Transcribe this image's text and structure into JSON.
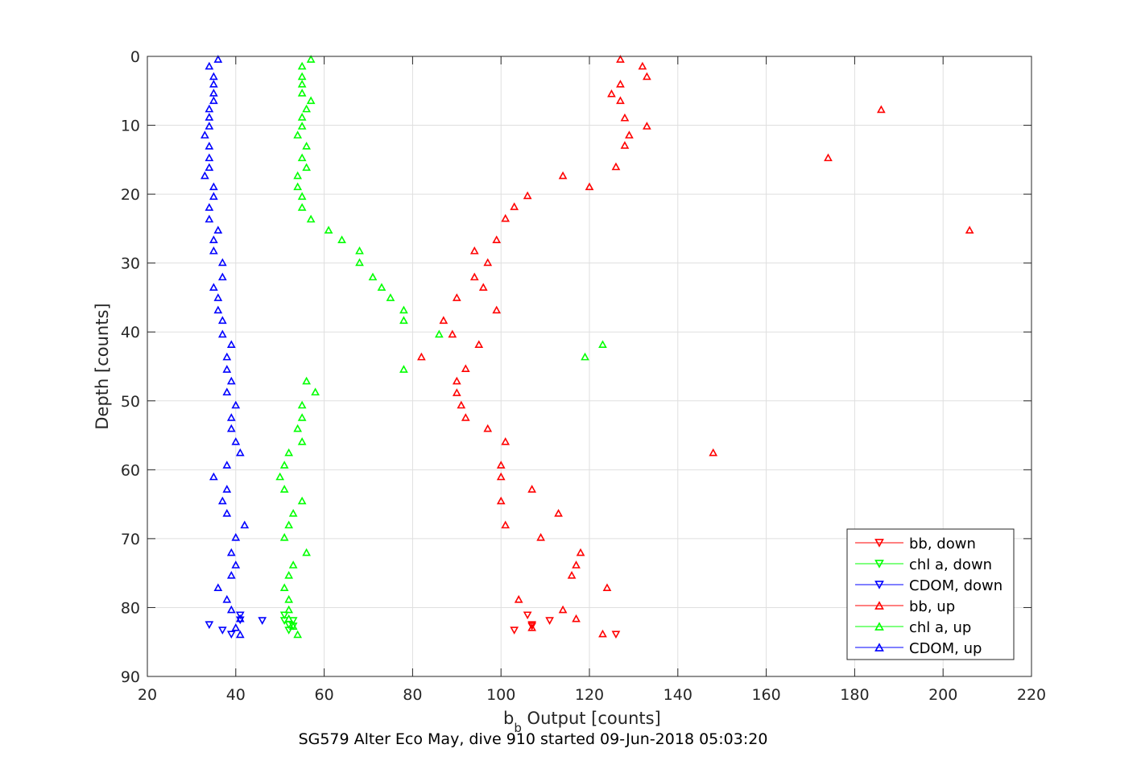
{
  "chart_data": {
    "type": "scatter",
    "title": "SG579 Alter Eco May, dive 910 started 09-Jun-2018 05:03:20",
    "xlabel_main": "b",
    "xlabel_sub": "b",
    "xlabel_rest": " Output [counts]",
    "ylabel": "Depth [counts]",
    "xlim": [
      20,
      220
    ],
    "ylim": [
      0,
      90
    ],
    "y_reversed": true,
    "grid": true,
    "legend_position": "bottom-right",
    "x_ticks": [
      20,
      40,
      60,
      80,
      100,
      120,
      140,
      160,
      180,
      200,
      220
    ],
    "y_ticks": [
      0,
      10,
      20,
      30,
      40,
      50,
      60,
      70,
      80,
      90
    ],
    "series": [
      {
        "name": "bb, down",
        "color": "#ff0000",
        "marker": "triangle-down",
        "points": [
          [
            103,
            83.3
          ],
          [
            107,
            82.7
          ],
          [
            111,
            81.9
          ],
          [
            106,
            81.1
          ],
          [
            107,
            82.5
          ],
          [
            126,
            83.9
          ]
        ]
      },
      {
        "name": "chl a, down",
        "color": "#00ff00",
        "marker": "triangle-down",
        "points": [
          [
            52,
            83.3
          ],
          [
            53,
            82.7
          ],
          [
            53,
            81.9
          ],
          [
            51,
            81.1
          ],
          [
            52,
            82.5
          ],
          [
            51,
            81.9
          ]
        ]
      },
      {
        "name": "CDOM, down",
        "color": "#0000ff",
        "marker": "triangle-down",
        "points": [
          [
            37,
            83.3
          ],
          [
            39,
            83.9
          ],
          [
            34,
            82.5
          ],
          [
            46,
            81.9
          ],
          [
            41,
            81.1
          ],
          [
            41,
            81.8
          ]
        ]
      },
      {
        "name": "bb, up",
        "color": "#ff0000",
        "marker": "triangle-up",
        "points": [
          [
            127,
            0.4
          ],
          [
            132,
            1.4
          ],
          [
            133,
            2.9
          ],
          [
            127,
            4.0
          ],
          [
            125,
            5.4
          ],
          [
            127,
            6.4
          ],
          [
            186,
            7.7
          ],
          [
            128,
            8.9
          ],
          [
            133,
            10.1
          ],
          [
            129,
            11.4
          ],
          [
            128,
            12.9
          ],
          [
            174,
            14.7
          ],
          [
            126,
            16.0
          ],
          [
            114,
            17.3
          ],
          [
            120,
            18.9
          ],
          [
            106,
            20.2
          ],
          [
            103,
            21.8
          ],
          [
            101,
            23.5
          ],
          [
            206,
            25.2
          ],
          [
            99,
            26.6
          ],
          [
            94,
            28.2
          ],
          [
            97,
            29.9
          ],
          [
            94,
            32.0
          ],
          [
            96,
            33.5
          ],
          [
            90,
            35.0
          ],
          [
            99,
            36.8
          ],
          [
            87,
            38.3
          ],
          [
            89,
            40.3
          ],
          [
            95,
            41.8
          ],
          [
            82,
            43.6
          ],
          [
            92,
            45.3
          ],
          [
            90,
            47.1
          ],
          [
            90,
            48.8
          ],
          [
            91,
            50.6
          ],
          [
            92,
            52.4
          ],
          [
            97,
            54.0
          ],
          [
            101,
            55.9
          ],
          [
            148,
            57.5
          ],
          [
            100,
            59.3
          ],
          [
            100,
            61.0
          ],
          [
            107,
            62.8
          ],
          [
            100,
            64.5
          ],
          [
            113,
            66.3
          ],
          [
            101,
            68.0
          ],
          [
            109,
            69.8
          ],
          [
            118,
            72.0
          ],
          [
            117,
            73.8
          ],
          [
            116,
            75.3
          ],
          [
            124,
            77.1
          ],
          [
            104,
            78.8
          ],
          [
            114,
            80.3
          ],
          [
            117,
            81.6
          ],
          [
            107,
            82.9
          ],
          [
            123,
            83.8
          ]
        ]
      },
      {
        "name": "chl a, up",
        "color": "#00ff00",
        "marker": "triangle-up",
        "points": [
          [
            57,
            0.4
          ],
          [
            55,
            1.4
          ],
          [
            55,
            2.9
          ],
          [
            55,
            4.0
          ],
          [
            55,
            5.3
          ],
          [
            57,
            6.4
          ],
          [
            56,
            7.6
          ],
          [
            55,
            8.8
          ],
          [
            55,
            10.1
          ],
          [
            54,
            11.4
          ],
          [
            56,
            13.0
          ],
          [
            55,
            14.7
          ],
          [
            56,
            16.1
          ],
          [
            54,
            17.3
          ],
          [
            54,
            18.9
          ],
          [
            55,
            20.3
          ],
          [
            55,
            21.9
          ],
          [
            57,
            23.6
          ],
          [
            61,
            25.2
          ],
          [
            64,
            26.6
          ],
          [
            68,
            28.2
          ],
          [
            68,
            29.9
          ],
          [
            71,
            32.0
          ],
          [
            73,
            33.5
          ],
          [
            75,
            35.0
          ],
          [
            78,
            36.8
          ],
          [
            78,
            38.3
          ],
          [
            86,
            40.3
          ],
          [
            123,
            41.8
          ],
          [
            119,
            43.6
          ],
          [
            78,
            45.4
          ],
          [
            56,
            47.1
          ],
          [
            58,
            48.7
          ],
          [
            55,
            50.6
          ],
          [
            55,
            52.4
          ],
          [
            54,
            54.0
          ],
          [
            55,
            55.9
          ],
          [
            52,
            57.5
          ],
          [
            51,
            59.3
          ],
          [
            50,
            61.0
          ],
          [
            51,
            62.8
          ],
          [
            55,
            64.5
          ],
          [
            53,
            66.3
          ],
          [
            52,
            68.0
          ],
          [
            51,
            69.8
          ],
          [
            56,
            72.0
          ],
          [
            53,
            73.8
          ],
          [
            52,
            75.3
          ],
          [
            51,
            77.1
          ],
          [
            52,
            78.8
          ],
          [
            52,
            80.3
          ],
          [
            52,
            81.6
          ],
          [
            53,
            82.7
          ],
          [
            54,
            83.9
          ]
        ]
      },
      {
        "name": "CDOM, up",
        "color": "#0000ff",
        "marker": "triangle-up",
        "points": [
          [
            36,
            0.4
          ],
          [
            34,
            1.4
          ],
          [
            35,
            2.9
          ],
          [
            35,
            4.0
          ],
          [
            35,
            5.3
          ],
          [
            35,
            6.4
          ],
          [
            34,
            7.6
          ],
          [
            34,
            8.8
          ],
          [
            34,
            10.1
          ],
          [
            33,
            11.4
          ],
          [
            34,
            13.0
          ],
          [
            34,
            14.7
          ],
          [
            34,
            16.1
          ],
          [
            33,
            17.3
          ],
          [
            35,
            18.9
          ],
          [
            35,
            20.3
          ],
          [
            34,
            21.9
          ],
          [
            34,
            23.6
          ],
          [
            36,
            25.2
          ],
          [
            35,
            26.6
          ],
          [
            35,
            28.2
          ],
          [
            37,
            29.9
          ],
          [
            37,
            32.0
          ],
          [
            35,
            33.5
          ],
          [
            36,
            35.0
          ],
          [
            36,
            36.8
          ],
          [
            37,
            38.3
          ],
          [
            37,
            40.3
          ],
          [
            39,
            41.8
          ],
          [
            38,
            43.6
          ],
          [
            38,
            45.4
          ],
          [
            39,
            47.1
          ],
          [
            38,
            48.7
          ],
          [
            40,
            50.6
          ],
          [
            39,
            52.4
          ],
          [
            39,
            54.0
          ],
          [
            40,
            55.9
          ],
          [
            41,
            57.5
          ],
          [
            38,
            59.3
          ],
          [
            35,
            61.0
          ],
          [
            38,
            62.8
          ],
          [
            37,
            64.5
          ],
          [
            38,
            66.3
          ],
          [
            42,
            68.0
          ],
          [
            40,
            69.8
          ],
          [
            39,
            72.0
          ],
          [
            40,
            73.8
          ],
          [
            39,
            75.3
          ],
          [
            36,
            77.1
          ],
          [
            38,
            78.8
          ],
          [
            39,
            80.3
          ],
          [
            41,
            81.6
          ],
          [
            40,
            82.9
          ],
          [
            41,
            83.9
          ]
        ]
      }
    ]
  }
}
